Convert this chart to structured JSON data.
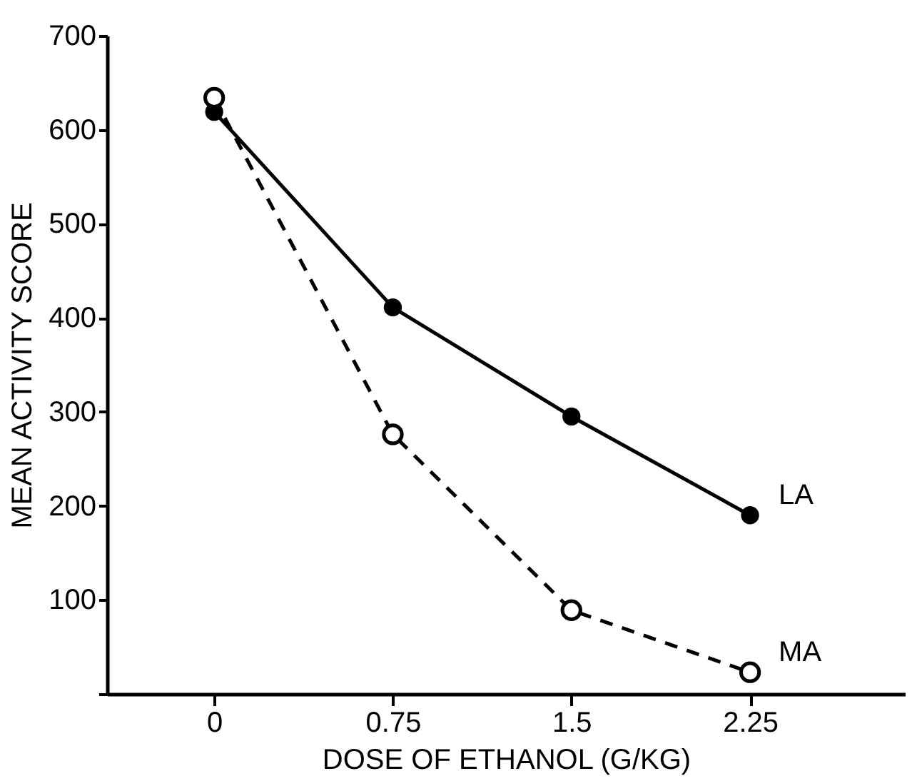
{
  "chart_data": {
    "type": "line",
    "xlabel": "DOSE OF ETHANOL (G/KG)",
    "ylabel": "MEAN ACTIVITY SCORE",
    "x": [
      0,
      0.75,
      1.5,
      2.25
    ],
    "series": [
      {
        "name": "LA",
        "color": "#000000",
        "values": [
          619,
          411,
          295,
          190
        ],
        "line_style": "solid",
        "marker": "circle"
      },
      {
        "name": "MA",
        "color": "#000000",
        "values": [
          634,
          276,
          89,
          23
        ],
        "line_style": "dashed",
        "marker": "circle"
      }
    ],
    "xlim": [
      -0.45,
      2.9
    ],
    "xticks": [
      0,
      0.75,
      1.5,
      2.25
    ],
    "ylim": [
      0,
      700
    ],
    "yticks": [
      {
        "value": 0,
        "label": null
      },
      100,
      200,
      300,
      400,
      500,
      600,
      700
    ],
    "grid": false,
    "legend": false
  }
}
